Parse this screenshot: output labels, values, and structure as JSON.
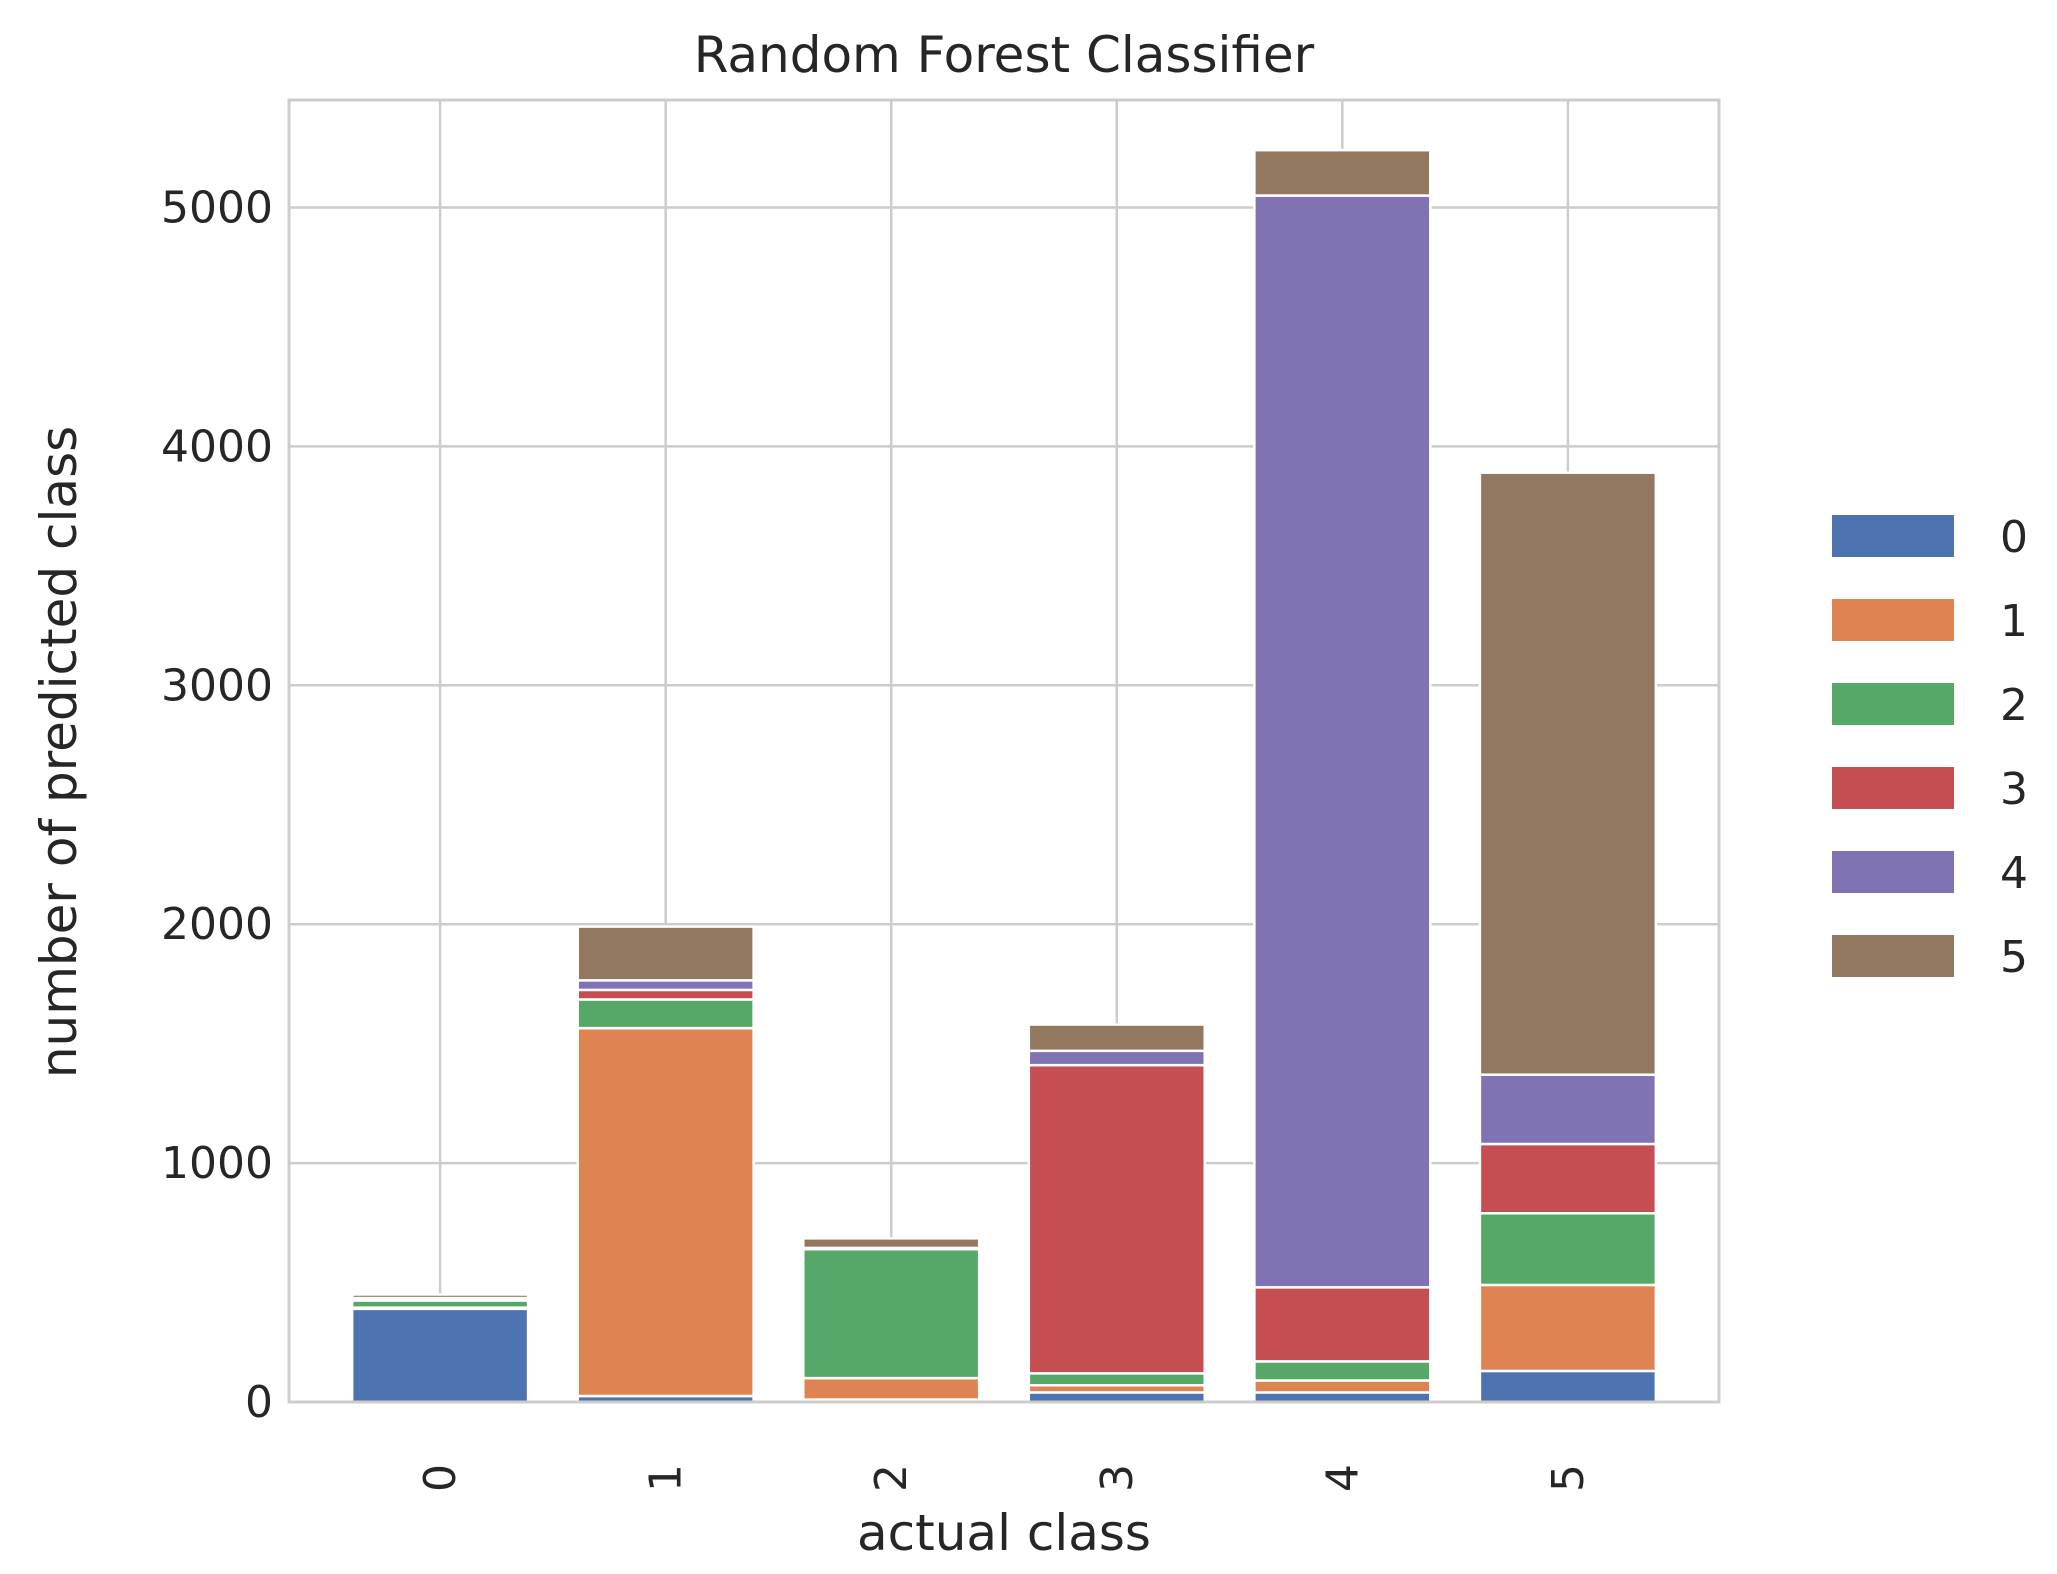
{
  "chart_data": {
    "type": "bar",
    "stacked": true,
    "title": "Random Forest Classifier",
    "xlabel": "actual class",
    "ylabel": "number of predicted class",
    "categories": [
      "0",
      "1",
      "2",
      "3",
      "4",
      "5"
    ],
    "ylim": [
      0,
      5450
    ],
    "yticks": [
      0,
      1000,
      2000,
      3000,
      4000,
      5000
    ],
    "ytick_labels": [
      "0",
      "1000",
      "2000",
      "3000",
      "4000",
      "5000"
    ],
    "grid": true,
    "legend": {
      "placement": "right-outside"
    },
    "series": [
      {
        "name": "0",
        "color": "#4c72b0",
        "values": [
          390,
          25,
          10,
          40,
          40,
          130
        ]
      },
      {
        "name": "1",
        "color": "#dd8452",
        "values": [
          5,
          1540,
          90,
          30,
          50,
          360
        ]
      },
      {
        "name": "2",
        "color": "#55a868",
        "values": [
          30,
          120,
          540,
          50,
          80,
          300
        ]
      },
      {
        "name": "3",
        "color": "#c44e52",
        "values": [
          5,
          40,
          0,
          1290,
          310,
          290
        ]
      },
      {
        "name": "4",
        "color": "#8172b3",
        "values": [
          5,
          40,
          5,
          60,
          4570,
          290
        ]
      },
      {
        "name": "5",
        "color": "#937860",
        "values": [
          15,
          225,
          40,
          110,
          190,
          2520
        ]
      }
    ]
  }
}
